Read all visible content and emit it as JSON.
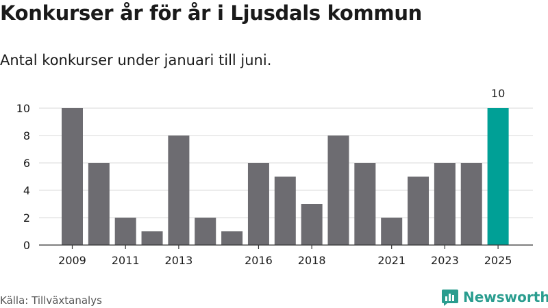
{
  "title": "Konkurser år för år i Ljusdals kommun",
  "subtitle": "Antal konkurser under januari till juni.",
  "source": "Källa: Tillväxtanalys",
  "brand": {
    "name": "Newsworthy",
    "icon": "bar-chart-logo-icon",
    "color": "#2a9d8f"
  },
  "colors": {
    "bar": "#6d6c71",
    "highlight": "#00a096",
    "grid": "#d9d9d9",
    "axis": "#333333"
  },
  "chart_data": {
    "type": "bar",
    "categories": [
      "2009",
      "2010",
      "2011",
      "2012",
      "2013",
      "2014",
      "2015",
      "2016",
      "2017",
      "2018",
      "2019",
      "2020",
      "2021",
      "2022",
      "2023",
      "2024",
      "2025"
    ],
    "values": [
      10,
      6,
      2,
      1,
      8,
      2,
      1,
      6,
      5,
      3,
      8,
      6,
      2,
      5,
      6,
      6,
      10
    ],
    "tick_labels": [
      "2009",
      "2011",
      "2013",
      "2016",
      "2018",
      "2021",
      "2023",
      "2025"
    ],
    "highlight": {
      "category": "2025",
      "label": "10"
    },
    "ylim": [
      0,
      10
    ],
    "yticks": [
      0,
      2,
      4,
      6,
      8,
      10
    ],
    "grid": true,
    "xlabel": "",
    "ylabel": ""
  }
}
